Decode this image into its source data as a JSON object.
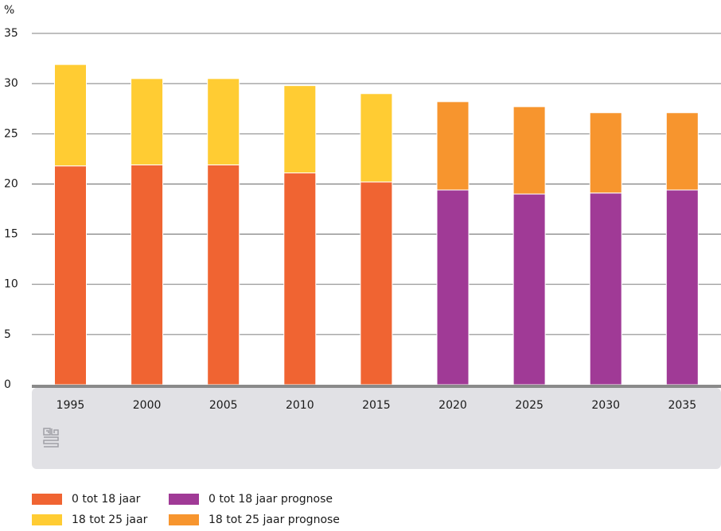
{
  "chart_data": {
    "type": "bar",
    "stacked": true,
    "categories": [
      "1995",
      "2000",
      "2005",
      "2010",
      "2015",
      "2020",
      "2025",
      "2030",
      "2035"
    ],
    "ylabel": "%",
    "ylim": [
      0,
      35
    ],
    "yticks": [
      0,
      5,
      10,
      15,
      20,
      25,
      30,
      35
    ],
    "grid": true,
    "legend_position": "bottom",
    "series": [
      {
        "name": "0 tot 18 jaar",
        "color": "#f06432",
        "values": [
          21.8,
          21.9,
          21.9,
          21.1,
          20.2,
          null,
          null,
          null,
          null
        ]
      },
      {
        "name": "18 tot 25 jaar",
        "color": "#ffcc33",
        "values": [
          10.1,
          8.6,
          8.6,
          8.7,
          8.8,
          null,
          null,
          null,
          null
        ]
      },
      {
        "name": "0 tot 18 jaar prognose",
        "color": "#a03a96",
        "values": [
          null,
          null,
          null,
          null,
          null,
          19.4,
          19.0,
          19.1,
          19.4
        ]
      },
      {
        "name": "18 tot 25 jaar prognose",
        "color": "#f7952e",
        "values": [
          null,
          null,
          null,
          null,
          null,
          8.8,
          8.7,
          8.0,
          7.7
        ]
      }
    ]
  },
  "legend": [
    {
      "label": "0 tot 18 jaar",
      "color": "#f06432",
      "icon": "swatch-icon"
    },
    {
      "label": "0 tot 18 jaar prognose",
      "color": "#a03a96",
      "icon": "swatch-icon"
    },
    {
      "label": "18 tot 25 jaar",
      "color": "#ffcc33",
      "icon": "swatch-icon"
    },
    {
      "label": "18 tot 25 jaar prognose",
      "color": "#f7952e",
      "icon": "swatch-icon"
    }
  ],
  "logo": {
    "icon": "cbs-logo-icon",
    "text": "cbs"
  }
}
